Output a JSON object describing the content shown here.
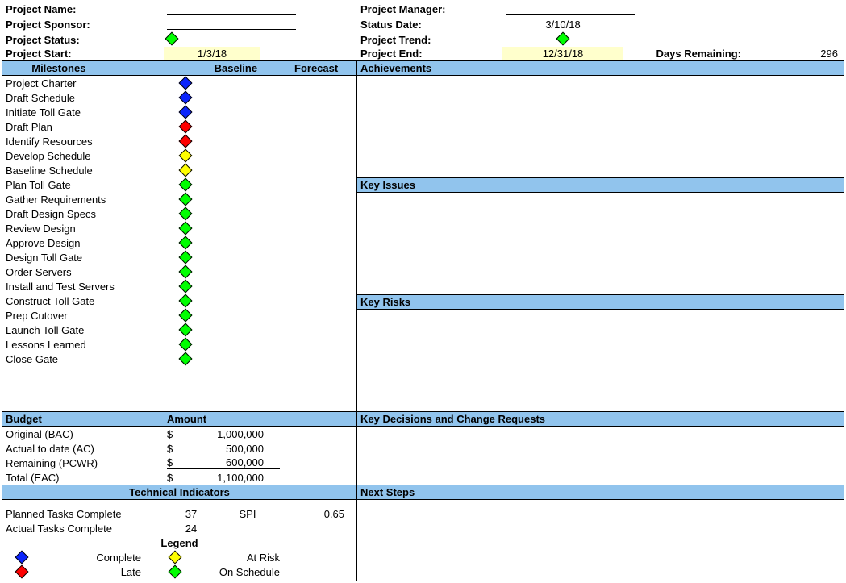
{
  "colors": {
    "header_bg": "#91c4ed",
    "highlight_bg": "#ffffcc",
    "diamond_blue": "#0b24fb",
    "diamond_red": "#fe0000",
    "diamond_yellow": "#ffff00",
    "diamond_green": "#00ff00",
    "border": "#000000"
  },
  "header": {
    "project_name_label": "Project Name:",
    "project_name_value": "",
    "project_manager_label": "Project Manager:",
    "project_manager_value": "",
    "project_sponsor_label": "Project Sponsor:",
    "project_sponsor_value": "",
    "status_date_label": "Status Date:",
    "status_date_value": "3/10/18",
    "project_status_label": "Project Status:",
    "project_status_color": "#00ff00",
    "project_trend_label": "Project Trend:",
    "project_trend_color": "#00ff00",
    "project_start_label": "Project Start:",
    "project_start_value": "1/3/18",
    "project_end_label": "Project End:",
    "project_end_value": "12/31/18",
    "days_remaining_label": "Days Remaining:",
    "days_remaining_value": "296"
  },
  "milestones": {
    "header": "Milestones",
    "col_baseline": "Baseline",
    "col_forecast": "Forecast",
    "items": [
      {
        "label": "Project Charter",
        "color": "#0b24fb"
      },
      {
        "label": "Draft Schedule",
        "color": "#0b24fb"
      },
      {
        "label": "Initiate Toll Gate",
        "color": "#0b24fb"
      },
      {
        "label": "Draft Plan",
        "color": "#fe0000"
      },
      {
        "label": "Identify Resources",
        "color": "#fe0000"
      },
      {
        "label": "Develop Schedule",
        "color": "#ffff00"
      },
      {
        "label": "Baseline Schedule",
        "color": "#ffff00"
      },
      {
        "label": "Plan Toll Gate",
        "color": "#00ff00"
      },
      {
        "label": "Gather Requirements",
        "color": "#00ff00"
      },
      {
        "label": "Draft Design Specs",
        "color": "#00ff00"
      },
      {
        "label": "Review Design",
        "color": "#00ff00"
      },
      {
        "label": "Approve Design",
        "color": "#00ff00"
      },
      {
        "label": "Design Toll Gate",
        "color": "#00ff00"
      },
      {
        "label": "Order Servers",
        "color": "#00ff00"
      },
      {
        "label": "Install and Test Servers",
        "color": "#00ff00"
      },
      {
        "label": "Construct Toll Gate",
        "color": "#00ff00"
      },
      {
        "label": "Prep Cutover",
        "color": "#00ff00"
      },
      {
        "label": "Launch Toll Gate",
        "color": "#00ff00"
      },
      {
        "label": "Lessons Learned",
        "color": "#00ff00"
      },
      {
        "label": "Close Gate",
        "color": "#00ff00"
      }
    ]
  },
  "right_sections": {
    "achievements": "Achievements",
    "key_issues": "Key Issues",
    "key_risks": "Key Risks",
    "key_decisions": "Key Decisions and Change Requests",
    "next_steps": "Next Steps"
  },
  "budget": {
    "header_label": "Budget",
    "header_amount": "Amount",
    "rows": [
      {
        "label": "Original (BAC)",
        "symbol": "$",
        "amount": "1,000,000",
        "underline": false
      },
      {
        "label": "Actual to date (AC)",
        "symbol": "$",
        "amount": "500,000",
        "underline": false
      },
      {
        "label": "Remaining (PCWR)",
        "symbol": "$",
        "amount": "600,000",
        "underline": true
      },
      {
        "label": "Total (EAC)",
        "symbol": "$",
        "amount": "1,100,000",
        "underline": false
      }
    ]
  },
  "technical": {
    "header": "Technical Indicators",
    "planned_label": "Planned Tasks Complete",
    "planned_value": "37",
    "spi_label": "SPI",
    "spi_value": "0.65",
    "actual_label": "Actual Tasks Complete",
    "actual_value": "24"
  },
  "legend": {
    "header": "Legend",
    "items": [
      {
        "color": "#0b24fb",
        "label": "Complete"
      },
      {
        "color": "#ffff00",
        "label": "At Risk"
      },
      {
        "color": "#fe0000",
        "label": "Late"
      },
      {
        "color": "#00ff00",
        "label": "On Schedule"
      }
    ]
  }
}
